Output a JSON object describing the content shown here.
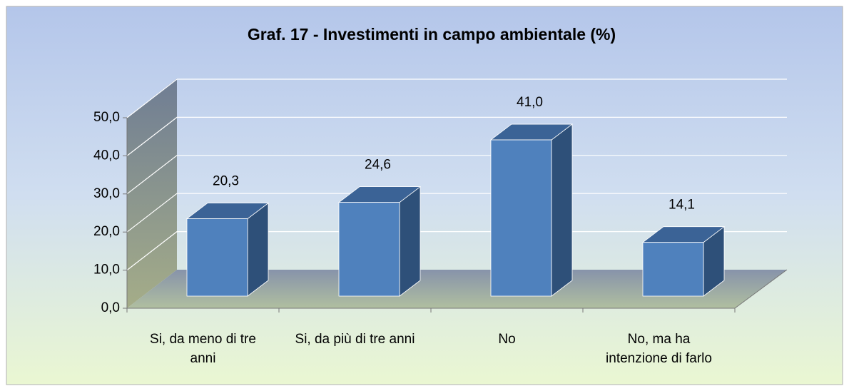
{
  "chart_data": {
    "type": "bar3d",
    "title": "Graf. 17 - Investimenti in campo ambientale (%)",
    "categories": [
      "Si, da meno di tre anni",
      "Si, da più di tre anni",
      "No",
      "No, ma ha intenzione di farlo"
    ],
    "values": [
      20.3,
      24.6,
      41.0,
      14.1
    ],
    "value_labels": [
      "20,3",
      "24,6",
      "41,0",
      "14,1"
    ],
    "color": "#4f81bd",
    "ylim": [
      0,
      50
    ],
    "yticks": [
      {
        "value": 0,
        "label": "0,0"
      },
      {
        "value": 10,
        "label": "10,0"
      },
      {
        "value": 20,
        "label": "20,0"
      },
      {
        "value": 30,
        "label": "30,0"
      },
      {
        "value": 40,
        "label": "40,0"
      },
      {
        "value": 50,
        "label": "50,0"
      }
    ],
    "grid": true
  }
}
